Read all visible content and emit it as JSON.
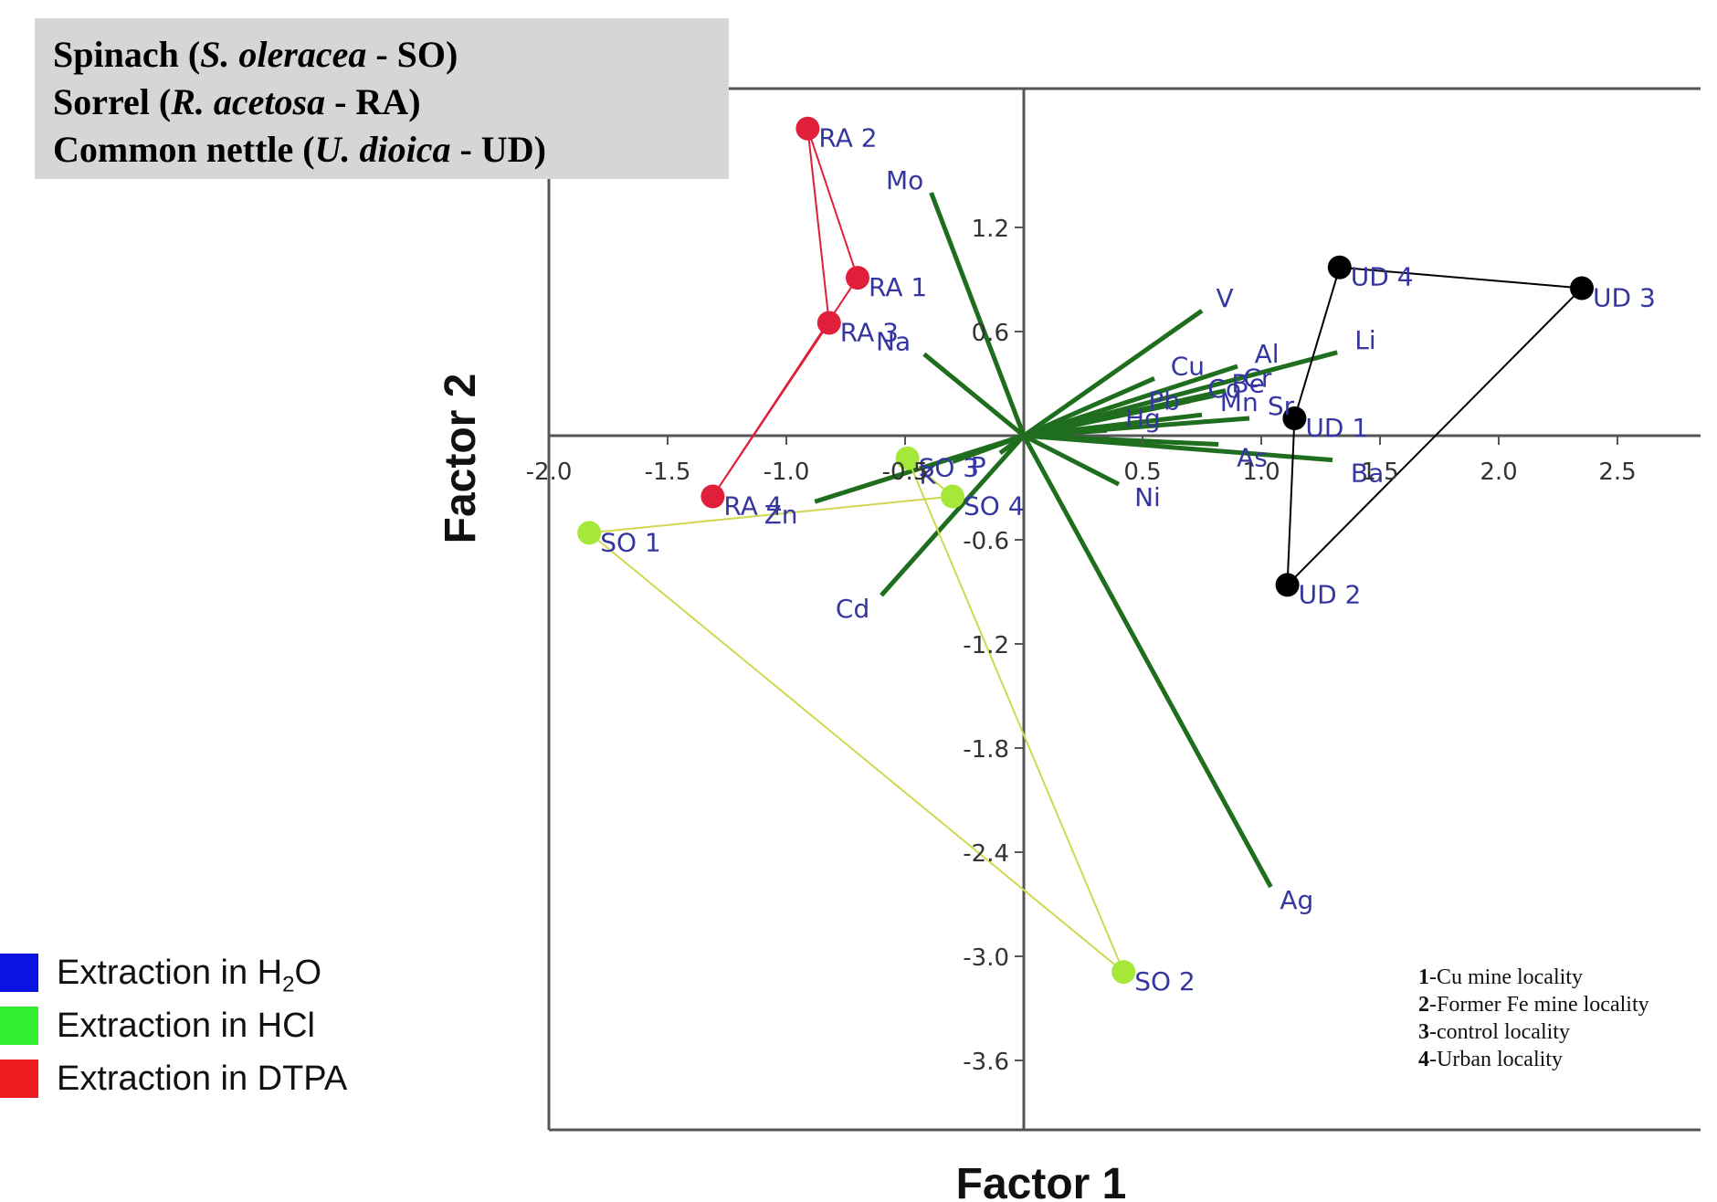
{
  "species_box": {
    "lines": [
      {
        "common": "Spinach",
        "latin": "S. oleracea",
        "code": "SO"
      },
      {
        "common": "Sorrel",
        "latin": "R. acetosa",
        "code": "RA"
      },
      {
        "common": "Common nettle",
        "latin": "U. dioica",
        "code": "UD"
      }
    ]
  },
  "extraction_legend": [
    {
      "color": "#0a14e0",
      "prefix": "Extraction in H",
      "sub": "2",
      "suffix": "O"
    },
    {
      "color": "#33ee33",
      "prefix": "Extraction in HCl",
      "sub": "",
      "suffix": ""
    },
    {
      "color": "#ee1c1c",
      "prefix": "Extraction in DTPA",
      "sub": "",
      "suffix": ""
    }
  ],
  "locality_legend": [
    {
      "num": "1",
      "text": "-Cu mine locality"
    },
    {
      "num": "2",
      "text": "-Former Fe mine locality"
    },
    {
      "num": "3",
      "text": "-control locality"
    },
    {
      "num": "4",
      "text": "-Urban locality"
    }
  ],
  "chart_data": {
    "type": "scatter",
    "xlabel": "Factor 1",
    "ylabel": "Factor 2",
    "x_ticks": [
      "-2.0",
      "-1.5",
      "-1.0",
      "-0.5",
      "0.5",
      "1.0",
      "1.5",
      "2.0",
      "2.5"
    ],
    "y_ticks": [
      "1.2",
      "0.6",
      "-0.6",
      "-1.2",
      "-1.8",
      "-2.4",
      "-3.0",
      "-3.6"
    ],
    "xlim": [
      -2.0,
      2.85
    ],
    "ylim": [
      -4.0,
      2.0
    ],
    "grid": false,
    "colors": {
      "loading": "#1e6e1e",
      "label": "#3636a0",
      "SO": "#a6e83a",
      "RA": "#e0203a",
      "UD": "#000000",
      "SO_line": "#d0d850",
      "RA_line": "#e0203a",
      "UD_line": "#000000"
    },
    "loadings": [
      {
        "name": "Mo",
        "x": -0.39,
        "y": 1.4
      },
      {
        "name": "Na",
        "x": -0.42,
        "y": 0.47
      },
      {
        "name": "V",
        "x": 0.75,
        "y": 0.72
      },
      {
        "name": "Al",
        "x": 0.9,
        "y": 0.4
      },
      {
        "name": "Li",
        "x": 1.32,
        "y": 0.48
      },
      {
        "name": "Cu",
        "x": 0.55,
        "y": 0.33
      },
      {
        "name": "Cr",
        "x": 0.85,
        "y": 0.26
      },
      {
        "name": "Be",
        "x": 0.8,
        "y": 0.23
      },
      {
        "name": "Co",
        "x": 0.7,
        "y": 0.2
      },
      {
        "name": "Pb",
        "x": 0.45,
        "y": 0.13
      },
      {
        "name": "Mn",
        "x": 0.75,
        "y": 0.12
      },
      {
        "name": "Sr",
        "x": 0.95,
        "y": 0.1
      },
      {
        "name": "Hg",
        "x": 0.35,
        "y": 0.03
      },
      {
        "name": "As",
        "x": 0.82,
        "y": -0.05
      },
      {
        "name": "Ba",
        "x": 1.3,
        "y": -0.14
      },
      {
        "name": "Ni",
        "x": 0.4,
        "y": -0.28
      },
      {
        "name": "P",
        "x": -0.1,
        "y": -0.1
      },
      {
        "name": "K",
        "x": -0.3,
        "y": -0.15
      },
      {
        "name": "Zn",
        "x": -0.88,
        "y": -0.38
      },
      {
        "name": "Cd",
        "x": -0.6,
        "y": -0.92
      },
      {
        "name": "Ag",
        "x": 1.04,
        "y": -2.6
      }
    ],
    "groups": [
      {
        "name": "SO",
        "points": [
          {
            "label": "SO 1",
            "x": -1.83,
            "y": -0.56
          },
          {
            "label": "SO 2",
            "x": 0.42,
            "y": -3.09
          },
          {
            "label": "SO 3",
            "x": -0.49,
            "y": -0.13
          },
          {
            "label": "SO 4",
            "x": -0.3,
            "y": -0.35
          }
        ]
      },
      {
        "name": "RA",
        "points": [
          {
            "label": "RA 1",
            "x": -0.7,
            "y": 0.91
          },
          {
            "label": "RA 2",
            "x": -0.91,
            "y": 1.77
          },
          {
            "label": "RA 3",
            "x": -0.82,
            "y": 0.65
          },
          {
            "label": "RA 4",
            "x": -1.31,
            "y": -0.35
          }
        ]
      },
      {
        "name": "UD",
        "points": [
          {
            "label": "UD 1",
            "x": 1.14,
            "y": 0.1
          },
          {
            "label": "UD 2",
            "x": 1.11,
            "y": -0.86
          },
          {
            "label": "UD 3",
            "x": 2.35,
            "y": 0.85
          },
          {
            "label": "UD 4",
            "x": 1.33,
            "y": 0.97
          }
        ]
      }
    ]
  }
}
